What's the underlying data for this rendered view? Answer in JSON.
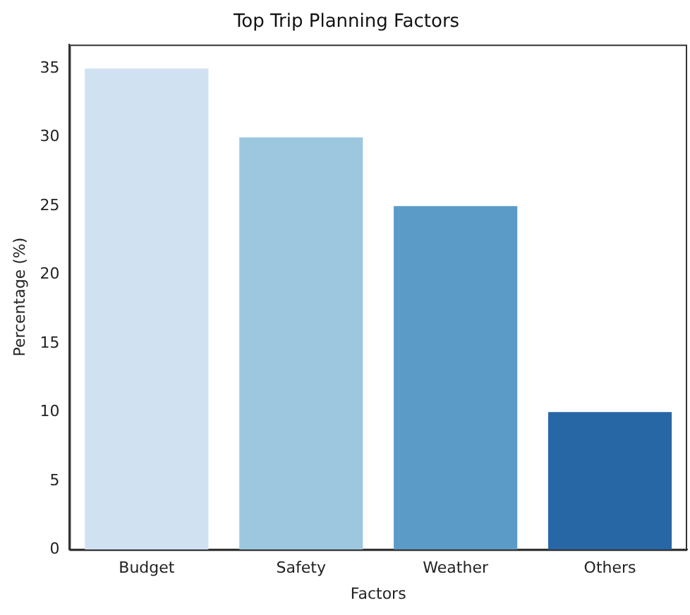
{
  "chart_data": {
    "type": "bar",
    "title": "Top Trip Planning Factors",
    "xlabel": "Factors",
    "ylabel": "Percentage (%)",
    "categories": [
      "Budget",
      "Safety",
      "Weather",
      "Others"
    ],
    "values": [
      35,
      30,
      25,
      10
    ],
    "colors": [
      "#d0e1f2",
      "#9cc7df",
      "#5a9bc8",
      "#2767a5"
    ],
    "ylim": [
      0,
      36.75
    ],
    "yticks": [
      0,
      5,
      10,
      15,
      20,
      25,
      30,
      35
    ],
    "grid": false,
    "legend": false
  }
}
